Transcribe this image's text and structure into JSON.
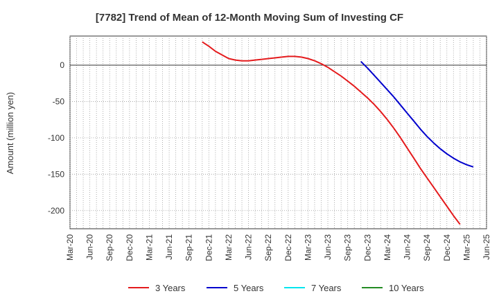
{
  "chart_data": {
    "type": "line",
    "title": "[7782]  Trend of Mean of 12-Month Moving Sum of Investing CF",
    "xlabel": "",
    "ylabel": "Amount (million yen)",
    "x_ticks": [
      "Mar-20",
      "Jun-20",
      "Sep-20",
      "Dec-20",
      "Mar-21",
      "Jun-21",
      "Sep-21",
      "Dec-21",
      "Mar-22",
      "Jun-22",
      "Sep-22",
      "Dec-22",
      "Mar-23",
      "Jun-23",
      "Sep-23",
      "Dec-23",
      "Mar-24",
      "Jun-24",
      "Sep-24",
      "Dec-24",
      "Mar-25",
      "Jun-25"
    ],
    "y_ticks": [
      0,
      -50,
      -100,
      -150,
      -200
    ],
    "ylim": [
      -225,
      40
    ],
    "grid": true,
    "legend_position": "bottom",
    "series": [
      {
        "name": "3 Years",
        "color": "#e41a1c",
        "points": [
          [
            "Nov-21",
            32
          ],
          [
            "Dec-21",
            26
          ],
          [
            "Jan-22",
            19
          ],
          [
            "Feb-22",
            14
          ],
          [
            "Mar-22",
            9
          ],
          [
            "Apr-22",
            7
          ],
          [
            "May-22",
            6
          ],
          [
            "Jun-22",
            6
          ],
          [
            "Jul-22",
            7
          ],
          [
            "Aug-22",
            8
          ],
          [
            "Sep-22",
            9
          ],
          [
            "Oct-22",
            10
          ],
          [
            "Nov-22",
            11
          ],
          [
            "Dec-22",
            12
          ],
          [
            "Jan-23",
            12
          ],
          [
            "Feb-23",
            11
          ],
          [
            "Mar-23",
            9
          ],
          [
            "Apr-23",
            6
          ],
          [
            "May-23",
            2
          ],
          [
            "Jun-23",
            -3
          ],
          [
            "Jul-23",
            -9
          ],
          [
            "Aug-23",
            -15
          ],
          [
            "Sep-23",
            -22
          ],
          [
            "Oct-23",
            -29
          ],
          [
            "Nov-23",
            -37
          ],
          [
            "Dec-23",
            -45
          ],
          [
            "Jan-24",
            -54
          ],
          [
            "Feb-24",
            -64
          ],
          [
            "Mar-24",
            -75
          ],
          [
            "Apr-24",
            -87
          ],
          [
            "May-24",
            -100
          ],
          [
            "Jun-24",
            -114
          ],
          [
            "Jul-24",
            -128
          ],
          [
            "Aug-24",
            -142
          ],
          [
            "Sep-24",
            -155
          ],
          [
            "Oct-24",
            -168
          ],
          [
            "Nov-24",
            -181
          ],
          [
            "Dec-24",
            -194
          ],
          [
            "Jan-25",
            -207
          ],
          [
            "Feb-25",
            -219
          ]
        ]
      },
      {
        "name": "5 Years",
        "color": "#0000cd",
        "points": [
          [
            "Nov-23",
            5
          ],
          [
            "Dec-23",
            -4
          ],
          [
            "Jan-24",
            -14
          ],
          [
            "Feb-24",
            -24
          ],
          [
            "Mar-24",
            -34
          ],
          [
            "Apr-24",
            -44
          ],
          [
            "May-24",
            -55
          ],
          [
            "Jun-24",
            -66
          ],
          [
            "Jul-24",
            -77
          ],
          [
            "Aug-24",
            -88
          ],
          [
            "Sep-24",
            -98
          ],
          [
            "Oct-24",
            -107
          ],
          [
            "Nov-24",
            -115
          ],
          [
            "Dec-24",
            -122
          ],
          [
            "Jan-25",
            -128
          ],
          [
            "Feb-25",
            -133
          ],
          [
            "Mar-25",
            -137
          ],
          [
            "Apr-25",
            -140
          ]
        ]
      },
      {
        "name": "7 Years",
        "color": "#00e5ee",
        "points": []
      },
      {
        "name": "10 Years",
        "color": "#228b22",
        "points": []
      }
    ]
  }
}
